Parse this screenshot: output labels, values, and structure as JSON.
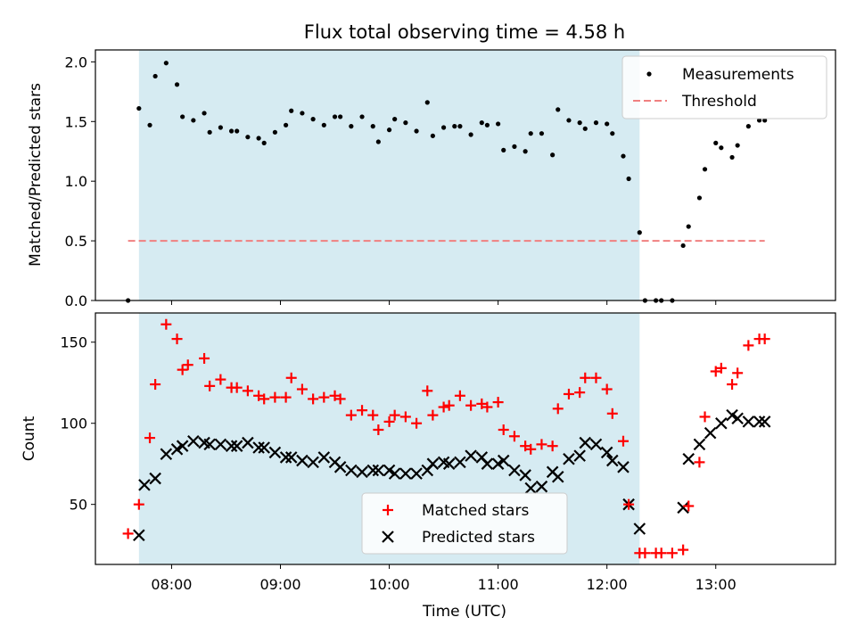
{
  "chart_data": {
    "type": "scatter",
    "title": "Flux total observing time = 4.58 h",
    "xlabel": "Time (UTC)",
    "x_ticks": [
      {
        "value": 8,
        "label": "08:00"
      },
      {
        "value": 9,
        "label": "09:00"
      },
      {
        "value": 10,
        "label": "10:00"
      },
      {
        "value": 11,
        "label": "11:00"
      },
      {
        "value": 12,
        "label": "12:00"
      },
      {
        "value": 13,
        "label": "13:00"
      }
    ],
    "xlim": [
      7.3,
      14.1
    ],
    "shaded_interval": {
      "start": 7.7,
      "end": 12.3,
      "color": "#add8e6"
    },
    "top": {
      "ylabel": "Matched/Predicted stars",
      "ylim": [
        0,
        2.1
      ],
      "y_ticks": [
        {
          "value": 0,
          "label": "0.0"
        },
        {
          "value": 0.5,
          "label": "0.5"
        },
        {
          "value": 1.0,
          "label": "1.0"
        },
        {
          "value": 1.5,
          "label": "1.5"
        },
        {
          "value": 2.0,
          "label": "2.0"
        }
      ],
      "legend": {
        "position": "top-right",
        "measurements_label": "Measurements",
        "threshold_label": "Threshold"
      },
      "threshold": {
        "value": 0.5,
        "x_start": 7.6,
        "x_end": 13.45,
        "color": "#f08080"
      },
      "measurements": {
        "x": [
          7.6,
          7.7,
          7.8,
          7.85,
          7.95,
          8.05,
          8.1,
          8.2,
          8.3,
          8.35,
          8.45,
          8.55,
          8.6,
          8.7,
          8.8,
          8.85,
          8.95,
          9.05,
          9.1,
          9.2,
          9.3,
          9.4,
          9.5,
          9.55,
          9.65,
          9.75,
          9.85,
          9.9,
          10.0,
          10.05,
          10.15,
          10.25,
          10.35,
          10.4,
          10.5,
          10.6,
          10.65,
          10.75,
          10.85,
          10.9,
          11.0,
          11.05,
          11.15,
          11.25,
          11.3,
          11.4,
          11.5,
          11.55,
          11.65,
          11.75,
          11.8,
          11.9,
          12.0,
          12.05,
          12.15,
          12.2,
          12.3,
          12.35,
          12.45,
          12.5,
          12.6,
          12.7,
          12.75,
          12.85,
          12.9,
          13.0,
          13.05,
          13.15,
          13.2,
          13.3,
          13.4,
          13.45
        ],
        "y": [
          0.0,
          1.61,
          1.47,
          1.88,
          1.99,
          1.81,
          1.54,
          1.51,
          1.57,
          1.41,
          1.45,
          1.42,
          1.42,
          1.37,
          1.36,
          1.32,
          1.41,
          1.47,
          1.59,
          1.57,
          1.52,
          1.47,
          1.54,
          1.54,
          1.46,
          1.54,
          1.46,
          1.33,
          1.43,
          1.52,
          1.49,
          1.42,
          1.66,
          1.38,
          1.45,
          1.46,
          1.46,
          1.39,
          1.49,
          1.47,
          1.48,
          1.26,
          1.29,
          1.25,
          1.4,
          1.4,
          1.22,
          1.6,
          1.51,
          1.49,
          1.44,
          1.49,
          1.48,
          1.4,
          1.21,
          1.02,
          0.57,
          0.0,
          0.0,
          0.0,
          0.0,
          0.46,
          0.62,
          0.86,
          1.1,
          1.32,
          1.28,
          1.2,
          1.3,
          1.46,
          1.51,
          1.51
        ]
      }
    },
    "bottom": {
      "ylabel": "Count",
      "ylim": [
        13,
        168
      ],
      "y_ticks": [
        {
          "value": 50,
          "label": "50"
        },
        {
          "value": 100,
          "label": "100"
        },
        {
          "value": 150,
          "label": "150"
        }
      ],
      "legend": {
        "position": "lower-center",
        "matched_label": "Matched stars",
        "predicted_label": "Predicted stars"
      },
      "series": [
        {
          "name": "Matched stars",
          "marker": "+",
          "color": "#ff0000",
          "x": [
            7.6,
            7.7,
            7.8,
            7.85,
            7.95,
            8.05,
            8.1,
            8.15,
            8.3,
            8.35,
            8.45,
            8.55,
            8.6,
            8.7,
            8.8,
            8.85,
            8.95,
            9.05,
            9.1,
            9.2,
            9.3,
            9.4,
            9.5,
            9.55,
            9.65,
            9.75,
            9.85,
            9.9,
            10.0,
            10.05,
            10.15,
            10.25,
            10.35,
            10.4,
            10.5,
            10.55,
            10.65,
            10.75,
            10.85,
            10.9,
            11.0,
            11.05,
            11.15,
            11.25,
            11.3,
            11.4,
            11.5,
            11.55,
            11.65,
            11.75,
            11.8,
            11.9,
            12.0,
            12.05,
            12.15,
            12.2,
            12.3,
            12.35,
            12.45,
            12.5,
            12.6,
            12.7,
            12.75,
            12.85,
            12.9,
            13.0,
            13.05,
            13.15,
            13.2,
            13.3,
            13.4,
            13.45
          ],
          "y": [
            32,
            50,
            91,
            124,
            161,
            152,
            133,
            136,
            140,
            123,
            127,
            122,
            122,
            120,
            117,
            115,
            116,
            116,
            128,
            121,
            115,
            116,
            117,
            115,
            105,
            108,
            105,
            96,
            101,
            105,
            104,
            100,
            120,
            105,
            110,
            111,
            117,
            111,
            112,
            110,
            113,
            96,
            92,
            86,
            84,
            87,
            86,
            109,
            118,
            119,
            128,
            128,
            121,
            106,
            89,
            50,
            20,
            20,
            20,
            20,
            20,
            22,
            49,
            76,
            104,
            132,
            134,
            124,
            131,
            148,
            152,
            152
          ]
        },
        {
          "name": "Predicted stars",
          "marker": "x",
          "color": "#000000",
          "x": [
            7.7,
            7.75,
            7.85,
            7.95,
            8.05,
            8.1,
            8.2,
            8.3,
            8.35,
            8.45,
            8.55,
            8.6,
            8.7,
            8.8,
            8.85,
            8.95,
            9.05,
            9.1,
            9.2,
            9.3,
            9.4,
            9.5,
            9.55,
            9.65,
            9.75,
            9.85,
            9.9,
            10.0,
            10.05,
            10.15,
            10.25,
            10.35,
            10.4,
            10.5,
            10.55,
            10.65,
            10.75,
            10.85,
            10.9,
            11.0,
            11.05,
            11.15,
            11.25,
            11.3,
            11.4,
            11.5,
            11.55,
            11.65,
            11.75,
            11.8,
            11.9,
            12.0,
            12.05,
            12.15,
            12.2,
            12.3,
            12.7,
            12.75,
            12.85,
            12.95,
            13.05,
            13.15,
            13.2,
            13.3,
            13.4,
            13.45
          ],
          "y": [
            31,
            62,
            66,
            81,
            84,
            86,
            89,
            88,
            87,
            87,
            86,
            86,
            88,
            85,
            85,
            82,
            79,
            79,
            77,
            76,
            79,
            76,
            73,
            71,
            70,
            71,
            71,
            71,
            69,
            69,
            69,
            71,
            75,
            76,
            75,
            76,
            80,
            79,
            75,
            75,
            77,
            71,
            68,
            60,
            61,
            70,
            67,
            78,
            80,
            88,
            87,
            82,
            77,
            73,
            50,
            35,
            48,
            78,
            87,
            94,
            100,
            105,
            103,
            101,
            101,
            101
          ]
        }
      ]
    }
  }
}
